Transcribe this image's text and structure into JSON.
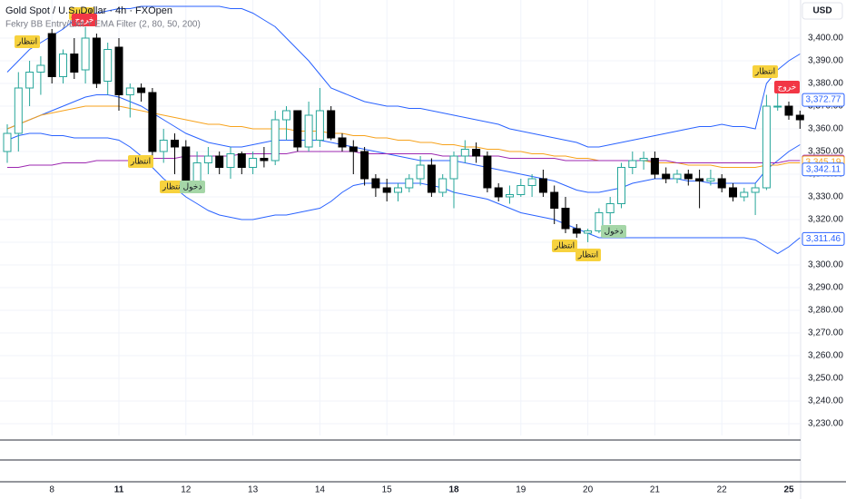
{
  "header": {
    "symbol": "Gold Spot / U.S. Dollar · 4h · FXOpen",
    "indicator": "Fekry BB Entry/Exit + EMA Filter (2, 80, 50, 200)",
    "currency": "USD"
  },
  "chart_data": {
    "type": "candlestick",
    "categories": [
      null,
      null,
      null,
      null,
      "8",
      null,
      null,
      null,
      null,
      null,
      "11",
      null,
      null,
      null,
      null,
      null,
      "12",
      null,
      null,
      null,
      null,
      null,
      "13",
      null,
      null,
      null,
      null,
      null,
      "14",
      null,
      null,
      null,
      null,
      null,
      "15",
      null,
      null,
      null,
      null,
      null,
      "18",
      null,
      null,
      null,
      null,
      null,
      "19",
      null,
      null,
      null,
      null,
      null,
      "20",
      null,
      null,
      null,
      null,
      null,
      "21",
      null,
      null,
      null,
      null,
      null,
      "22",
      null,
      null,
      null,
      null,
      null,
      "25",
      null
    ],
    "open": [
      3350,
      3358,
      3378,
      3385,
      3402,
      3383,
      3393,
      3386,
      3400,
      3381,
      3396,
      3375,
      3378,
      3376,
      3350,
      3355,
      3352,
      3337,
      3345,
      3348,
      3343,
      3349,
      3343,
      3347,
      3346,
      3364,
      3368,
      3352,
      3355,
      3368,
      3356,
      3352,
      3350,
      3338,
      3334,
      3332,
      3334,
      3338,
      3344,
      3332,
      3338,
      3348,
      3351,
      3348,
      3334,
      3330,
      3331,
      3335,
      3338,
      3332,
      3325,
      3316,
      3314,
      3315,
      3323,
      3327,
      3343,
      3346,
      3347,
      3340,
      3338,
      3340,
      3338,
      3337,
      3338,
      3334,
      3330,
      3332,
      3334,
      3370,
      3370,
      3366
    ],
    "high": [
      3362,
      3385,
      3390,
      3392,
      3404,
      3395,
      3400,
      3405,
      3402,
      3398,
      3400,
      3380,
      3380,
      3378,
      3360,
      3358,
      3355,
      3350,
      3352,
      3350,
      3352,
      3350,
      3350,
      3352,
      3368,
      3370,
      3368,
      3372,
      3378,
      3370,
      3358,
      3355,
      3352,
      3340,
      3338,
      3336,
      3340,
      3348,
      3347,
      3340,
      3350,
      3355,
      3354,
      3350,
      3336,
      3335,
      3338,
      3340,
      3342,
      3335,
      3330,
      3318,
      3316,
      3325,
      3330,
      3345,
      3350,
      3350,
      3350,
      3343,
      3342,
      3342,
      3342,
      3342,
      3340,
      3336,
      3334,
      3336,
      3375,
      3378,
      3372,
      3368
    ],
    "low": [
      3345,
      3350,
      3370,
      3375,
      3380,
      3380,
      3382,
      3380,
      3378,
      3375,
      3368,
      3365,
      3372,
      3345,
      3345,
      3340,
      3335,
      3335,
      3340,
      3340,
      3338,
      3340,
      3340,
      3343,
      3344,
      3355,
      3350,
      3350,
      3352,
      3355,
      3350,
      3340,
      3335,
      3330,
      3328,
      3328,
      3332,
      3335,
      3330,
      3330,
      3325,
      3345,
      3345,
      3332,
      3328,
      3327,
      3330,
      3330,
      3330,
      3318,
      3314,
      3312,
      3310,
      3314,
      3318,
      3325,
      3340,
      3342,
      3338,
      3336,
      3336,
      3335,
      3325,
      3335,
      3332,
      3328,
      3328,
      3322,
      3333,
      3368,
      3364,
      3360
    ],
    "close": [
      3358,
      3378,
      3385,
      3388,
      3383,
      3393,
      3385,
      3400,
      3380,
      3395,
      3375,
      3378,
      3376,
      3350,
      3355,
      3352,
      3337,
      3345,
      3348,
      3343,
      3349,
      3343,
      3347,
      3346,
      3364,
      3368,
      3352,
      3366,
      3368,
      3356,
      3352,
      3350,
      3338,
      3334,
      3332,
      3334,
      3338,
      3344,
      3332,
      3338,
      3348,
      3351,
      3348,
      3334,
      3330,
      3331,
      3335,
      3338,
      3332,
      3325,
      3316,
      3314,
      3315,
      3323,
      3327,
      3343,
      3346,
      3347,
      3340,
      3338,
      3340,
      3338,
      3337,
      3338,
      3334,
      3330,
      3332,
      3334,
      3370,
      3370,
      3366,
      3364
    ],
    "up_color": "#26a69a",
    "down_color": "#000000",
    "series": [
      {
        "color": "#2962ff",
        "values": [
          3385,
          3390,
          3395,
          3398,
          3401,
          3404,
          3408,
          3410,
          3411,
          3412,
          3413,
          3413,
          3414,
          3414,
          3414,
          3414,
          3414,
          3414,
          3414,
          3414,
          3413,
          3413,
          3411,
          3408,
          3405,
          3400,
          3395,
          3390,
          3384,
          3378,
          3376,
          3374,
          3372,
          3371,
          3370,
          3370,
          3369,
          3369,
          3368,
          3367,
          3366,
          3365,
          3364,
          3363,
          3362,
          3360,
          3359,
          3358,
          3357,
          3356,
          3355,
          3354,
          3352,
          3352,
          3353,
          3354,
          3355,
          3356,
          3357,
          3358,
          3359,
          3360,
          3361,
          3361,
          3362,
          3361,
          3361,
          3360,
          3380,
          3386,
          3390,
          3393
        ]
      },
      {
        "color": "#2962ff",
        "values": [
          3360,
          3362,
          3364,
          3366,
          3368,
          3370,
          3372,
          3374,
          3375,
          3375,
          3374,
          3372,
          3370,
          3367,
          3364,
          3361,
          3358,
          3356,
          3354,
          3353,
          3352,
          3352,
          3353,
          3354,
          3355,
          3355,
          3355,
          3355,
          3355,
          3354,
          3353,
          3352,
          3351,
          3350,
          3349,
          3348,
          3347,
          3346,
          3346,
          3346,
          3346,
          3345,
          3344,
          3343,
          3342,
          3341,
          3340,
          3339,
          3338,
          3337,
          3335,
          3333,
          3332,
          3332,
          3333,
          3334,
          3336,
          3337,
          3338,
          3338,
          3338,
          3337,
          3337,
          3336,
          3336,
          3336,
          3336,
          3336,
          3342,
          3346,
          3350,
          3353
        ]
      },
      {
        "color": "#2962ff",
        "values": [
          3355,
          3357,
          3358,
          3358,
          3357,
          3357,
          3356,
          3356,
          3356,
          3356,
          3355,
          3352,
          3348,
          3343,
          3338,
          3334,
          3330,
          3327,
          3324,
          3322,
          3321,
          3320,
          3320,
          3321,
          3322,
          3322,
          3323,
          3324,
          3325,
          3328,
          3332,
          3335,
          3336,
          3336,
          3336,
          3336,
          3336,
          3336,
          3335,
          3334,
          3332,
          3331,
          3330,
          3329,
          3327,
          3325,
          3323,
          3322,
          3321,
          3320,
          3318,
          3316,
          3314,
          3312,
          3312,
          3312,
          3312,
          3312,
          3312,
          3312,
          3312,
          3312,
          3312,
          3312,
          3312,
          3312,
          3312,
          3311,
          3308,
          3305,
          3308,
          3312
        ]
      },
      {
        "color": "#f7a21b",
        "values": [
          3360,
          3362,
          3364,
          3366,
          3367,
          3368,
          3369,
          3370,
          3370,
          3370,
          3370,
          3369,
          3368,
          3367,
          3366,
          3365,
          3364,
          3363,
          3362,
          3362,
          3361,
          3361,
          3360,
          3360,
          3360,
          3360,
          3359,
          3359,
          3359,
          3358,
          3358,
          3357,
          3357,
          3356,
          3356,
          3355,
          3355,
          3354,
          3354,
          3353,
          3353,
          3352,
          3352,
          3351,
          3351,
          3350,
          3350,
          3349,
          3349,
          3348,
          3348,
          3347,
          3347,
          3346,
          3346,
          3346,
          3346,
          3346,
          3345,
          3345,
          3345,
          3344,
          3344,
          3344,
          3343,
          3343,
          3343,
          3343,
          3344,
          3344,
          3345,
          3345
        ]
      },
      {
        "color": "#9c27b0",
        "values": [
          3343,
          3343,
          3344,
          3344,
          3344,
          3345,
          3345,
          3345,
          3346,
          3346,
          3346,
          3346,
          3347,
          3347,
          3347,
          3347,
          3348,
          3348,
          3348,
          3348,
          3348,
          3349,
          3349,
          3349,
          3349,
          3349,
          3350,
          3350,
          3350,
          3350,
          3350,
          3350,
          3349,
          3349,
          3349,
          3349,
          3349,
          3349,
          3349,
          3348,
          3348,
          3348,
          3348,
          3348,
          3348,
          3347,
          3347,
          3347,
          3347,
          3347,
          3346,
          3346,
          3346,
          3346,
          3346,
          3346,
          3346,
          3346,
          3346,
          3346,
          3345,
          3345,
          3345,
          3345,
          3345,
          3345,
          3345,
          3345,
          3345,
          3345,
          3346,
          3346
        ]
      }
    ],
    "ylim": [
      3224.8,
      3416.8
    ],
    "yticks": [
      {
        "value": 3230,
        "label": "3,230.00"
      },
      {
        "value": 3240,
        "label": "3,240.00"
      },
      {
        "value": 3250,
        "label": "3,250.00"
      },
      {
        "value": 3260,
        "label": "3,260.00"
      },
      {
        "value": 3270,
        "label": "3,270.00"
      },
      {
        "value": 3280,
        "label": "3,280.00"
      },
      {
        "value": 3290,
        "label": "3,290.00"
      },
      {
        "value": 3300,
        "label": "3,300.00"
      },
      {
        "value": 3310,
        "label": "3,310.00"
      },
      {
        "value": 3320,
        "label": "3,320.00"
      },
      {
        "value": 3330,
        "label": "3,330.00"
      },
      {
        "value": 3340,
        "label": "3,340.00"
      },
      {
        "value": 3350,
        "label": "3,350.00"
      },
      {
        "value": 3360,
        "label": "3,360.00"
      },
      {
        "value": 3370,
        "label": "3,370.00"
      },
      {
        "value": 3380,
        "label": "3,380.00"
      },
      {
        "value": 3390,
        "label": "3,390.00"
      },
      {
        "value": 3400,
        "label": "3,400.00"
      }
    ],
    "grid": true,
    "price_tags": [
      {
        "value": 3372.77,
        "label": "3,372.77",
        "color": "#2962ff"
      },
      {
        "value": 3345.54,
        "label": "3,345.54",
        "color": "#9c27b0"
      },
      {
        "value": 3345.19,
        "label": "3,345.19",
        "color": "#f7a21b"
      },
      {
        "value": 3342.11,
        "label": "3,342.11",
        "color": "#2962ff"
      },
      {
        "value": 3311.46,
        "label": "3,311.46",
        "color": "#2962ff"
      }
    ],
    "annotations": [
      {
        "text": "انتظار",
        "color": "#f7d23e"
      },
      {
        "text": "انتظار",
        "color": "#f7d23e"
      },
      {
        "text": "خروج",
        "color": "#f23645"
      },
      {
        "text": "انتظار",
        "color": "#f7d23e"
      },
      {
        "text": "انتظار",
        "color": "#f7d23e"
      },
      {
        "text": "دخول",
        "color": "#a5d6a7"
      },
      {
        "text": "انتظار",
        "color": "#f7d23e"
      },
      {
        "text": "انتظار",
        "color": "#f7d23e"
      },
      {
        "text": "دخول",
        "color": "#a5d6a7"
      },
      {
        "text": "انتظار",
        "color": "#f7d23e"
      },
      {
        "text": "خروج",
        "color": "#f23645"
      }
    ]
  }
}
